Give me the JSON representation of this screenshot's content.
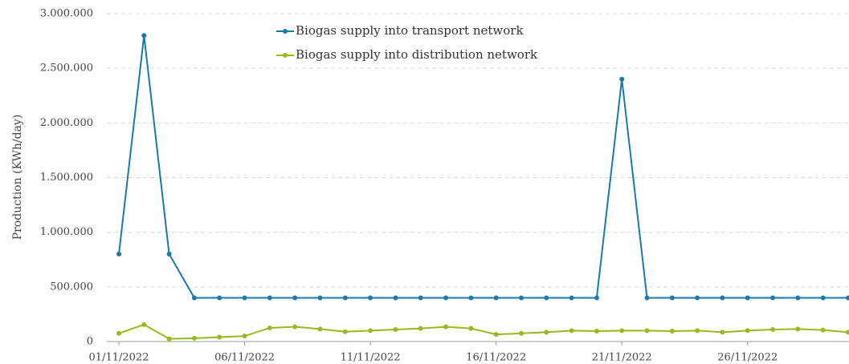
{
  "chart_data": {
    "type": "line",
    "y_label": "Production (KWh/day)",
    "categories": [
      "01/11/2022",
      null,
      null,
      null,
      null,
      "06/11/2022",
      null,
      null,
      null,
      null,
      "11/11/2022",
      null,
      null,
      null,
      null,
      "16/11/2022",
      null,
      null,
      null,
      null,
      "21/11/2022",
      null,
      null,
      null,
      null,
      "26/11/2022",
      null,
      null,
      null,
      null
    ],
    "series": [
      {
        "name": "Biogas supply into transport network",
        "color": "#1a7aa8",
        "values": [
          800000,
          2800000,
          800000,
          400000,
          400000,
          400000,
          400000,
          400000,
          400000,
          400000,
          400000,
          400000,
          400000,
          400000,
          400000,
          400000,
          400000,
          400000,
          400000,
          400000,
          2400000,
          400000,
          400000,
          400000,
          400000,
          400000,
          400000,
          400000,
          400000,
          400000
        ]
      },
      {
        "name": "Biogas supply into distribution network",
        "color": "#9ab81f",
        "values": [
          75000,
          155000,
          25000,
          30000,
          40000,
          50000,
          125000,
          135000,
          115000,
          90000,
          100000,
          110000,
          120000,
          135000,
          120000,
          65000,
          75000,
          85000,
          100000,
          95000,
          100000,
          100000,
          95000,
          100000,
          85000,
          100000,
          110000,
          115000,
          105000,
          85000
        ]
      }
    ],
    "ylim": [
      0,
      3000000
    ],
    "yticks": [
      0,
      {
        "value": 500000,
        "label": "500.000"
      },
      {
        "value": 1000000,
        "label": "1.000.000"
      },
      {
        "value": 1500000,
        "label": "1.500.000"
      },
      {
        "value": 2000000,
        "label": "2.000.000"
      },
      {
        "value": 2500000,
        "label": "2.500.000"
      },
      {
        "value": 3000000,
        "label": "3.000.000"
      }
    ],
    "grid": true,
    "legend": "top"
  }
}
